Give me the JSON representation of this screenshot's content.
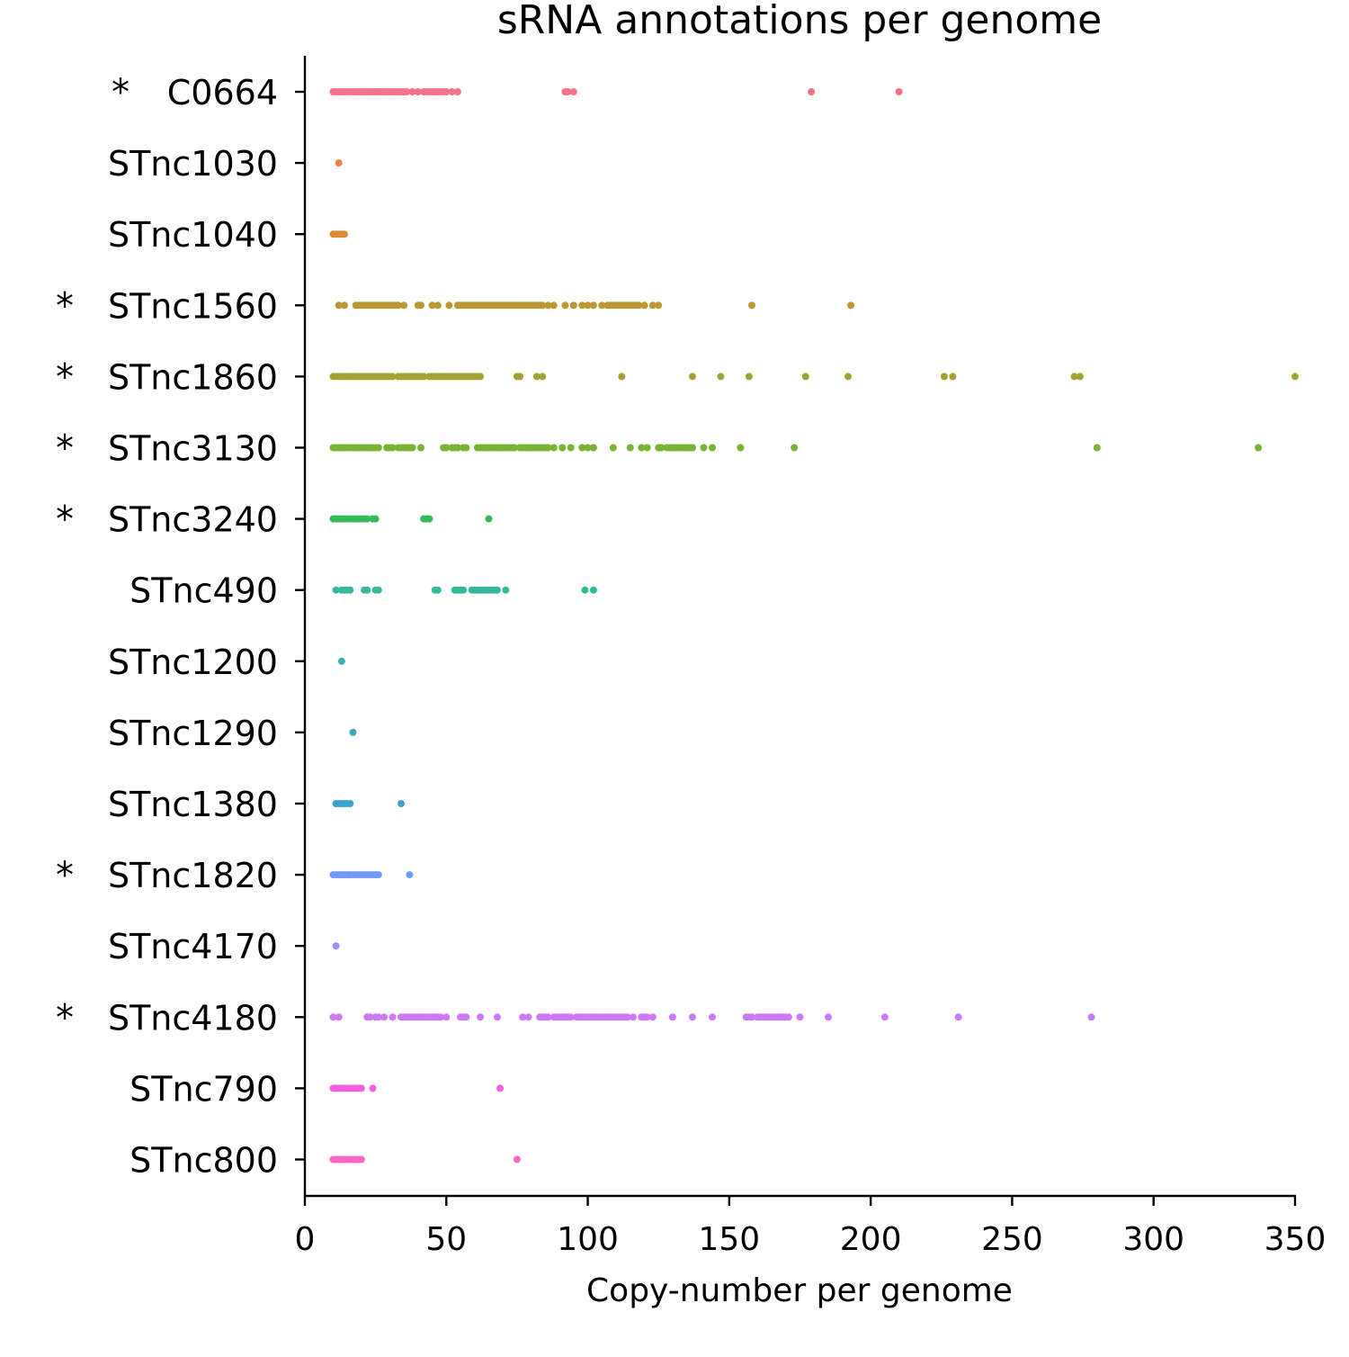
{
  "chart_data": {
    "type": "scatter",
    "title": "sRNA annotations per genome",
    "xlabel": "Copy-number per genome",
    "ylabel": "",
    "xlim": [
      0,
      350
    ],
    "xticks": [
      "0",
      "50",
      "100",
      "150",
      "200",
      "250",
      "300",
      "350"
    ],
    "grid": false,
    "legend": "none",
    "star_marker": "*",
    "categories": [
      {
        "label": "C0664",
        "starred": true,
        "color": "#f77189",
        "values": [
          10,
          11,
          12,
          13,
          14,
          15,
          16,
          17,
          18,
          19,
          20,
          21,
          22,
          23,
          24,
          25,
          26,
          27,
          28,
          29,
          30,
          31,
          32,
          33,
          34,
          35,
          36,
          38,
          40,
          42,
          43,
          44,
          45,
          46,
          47,
          48,
          49,
          50,
          52,
          54,
          92,
          93,
          95,
          179,
          210
        ]
      },
      {
        "label": "STnc1030",
        "starred": false,
        "color": "#f2814f",
        "values": [
          12
        ]
      },
      {
        "label": "STnc1040",
        "starred": false,
        "color": "#dc8932",
        "values": [
          10,
          11,
          12,
          13,
          14
        ]
      },
      {
        "label": "STnc1560",
        "starred": true,
        "color": "#bb9832",
        "values": [
          12,
          14,
          18,
          19,
          20,
          21,
          22,
          23,
          24,
          25,
          26,
          27,
          28,
          29,
          30,
          31,
          32,
          33,
          35,
          40,
          41,
          45,
          47,
          51,
          54,
          55,
          56,
          57,
          58,
          59,
          60,
          61,
          62,
          63,
          64,
          65,
          66,
          67,
          68,
          69,
          70,
          71,
          72,
          73,
          74,
          75,
          76,
          77,
          78,
          79,
          80,
          81,
          82,
          83,
          84,
          86,
          88,
          92,
          95,
          98,
          100,
          102,
          105,
          107,
          108,
          109,
          110,
          111,
          112,
          113,
          114,
          115,
          116,
          117,
          118,
          120,
          123,
          125,
          158,
          193
        ]
      },
      {
        "label": "STnc1860",
        "starred": true,
        "color": "#a2a233",
        "values": [
          10,
          11,
          12,
          13,
          14,
          15,
          16,
          17,
          18,
          19,
          20,
          21,
          22,
          23,
          24,
          25,
          26,
          27,
          28,
          29,
          30,
          31,
          33,
          34,
          35,
          36,
          37,
          38,
          39,
          40,
          41,
          42,
          44,
          45,
          46,
          47,
          48,
          49,
          50,
          51,
          52,
          53,
          54,
          55,
          56,
          57,
          58,
          59,
          60,
          61,
          62,
          75,
          76,
          82,
          84,
          112,
          137,
          147,
          157,
          177,
          192,
          226,
          229,
          272,
          274,
          350
        ]
      },
      {
        "label": "STnc3130",
        "starred": true,
        "color": "#78b432",
        "values": [
          10,
          11,
          12,
          13,
          14,
          15,
          16,
          17,
          18,
          19,
          20,
          21,
          22,
          23,
          24,
          25,
          26,
          29,
          30,
          31,
          33,
          34,
          35,
          36,
          37,
          38,
          41,
          49,
          50,
          52,
          53,
          54,
          56,
          57,
          61,
          62,
          63,
          64,
          65,
          66,
          67,
          68,
          69,
          70,
          71,
          72,
          73,
          74,
          76,
          77,
          78,
          79,
          80,
          81,
          82,
          83,
          84,
          85,
          86,
          88,
          91,
          94,
          98,
          100,
          102,
          109,
          115,
          119,
          121,
          125,
          126,
          128,
          129,
          130,
          131,
          132,
          133,
          134,
          135,
          136,
          137,
          141,
          144,
          154,
          173,
          280,
          337
        ]
      },
      {
        "label": "STnc3240",
        "starred": true,
        "color": "#34ba5a",
        "values": [
          10,
          11,
          12,
          13,
          14,
          15,
          16,
          17,
          18,
          19,
          20,
          21,
          22,
          24,
          25,
          42,
          43,
          44,
          65
        ]
      },
      {
        "label": "STnc490",
        "starred": false,
        "color": "#36b89b",
        "values": [
          11,
          13,
          14,
          15,
          16,
          21,
          22,
          25,
          26,
          46,
          47,
          53,
          54,
          55,
          56,
          59,
          60,
          61,
          62,
          63,
          64,
          65,
          66,
          67,
          68,
          71,
          99,
          102
        ]
      },
      {
        "label": "STnc1200",
        "starred": false,
        "color": "#38b1b0",
        "values": [
          13
        ]
      },
      {
        "label": "STnc1290",
        "starred": false,
        "color": "#3aaabb",
        "values": [
          17
        ]
      },
      {
        "label": "STnc1380",
        "starred": false,
        "color": "#3ba3cf",
        "values": [
          11,
          12,
          13,
          14,
          15,
          16,
          34
        ]
      },
      {
        "label": "STnc1820",
        "starred": true,
        "color": "#6e9bf4",
        "values": [
          10,
          11,
          12,
          13,
          14,
          15,
          16,
          17,
          18,
          19,
          20,
          21,
          22,
          23,
          24,
          25,
          26,
          37
        ]
      },
      {
        "label": "STnc4170",
        "starred": false,
        "color": "#a48cf4",
        "values": [
          11
        ]
      },
      {
        "label": "STnc4180",
        "starred": true,
        "color": "#cc7af4",
        "values": [
          10,
          12,
          22,
          23,
          25,
          26,
          28,
          31,
          34,
          35,
          36,
          37,
          38,
          39,
          40,
          41,
          42,
          43,
          44,
          45,
          46,
          47,
          48,
          50,
          55,
          56,
          57,
          62,
          68,
          77,
          79,
          83,
          84,
          85,
          86,
          88,
          89,
          90,
          91,
          92,
          93,
          94,
          96,
          97,
          98,
          99,
          100,
          101,
          102,
          103,
          104,
          105,
          106,
          107,
          108,
          109,
          110,
          111,
          112,
          113,
          114,
          116,
          119,
          120,
          121,
          123,
          130,
          137,
          144,
          156,
          157,
          158,
          160,
          161,
          162,
          163,
          164,
          165,
          166,
          167,
          168,
          169,
          170,
          171,
          175,
          185,
          205,
          231,
          278
        ]
      },
      {
        "label": "STnc790",
        "starred": false,
        "color": "#f45fe0",
        "values": [
          10,
          11,
          12,
          13,
          14,
          15,
          16,
          17,
          18,
          19,
          20,
          24,
          69
        ]
      },
      {
        "label": "STnc800",
        "starred": false,
        "color": "#f668c2",
        "values": [
          10,
          11,
          12,
          13,
          14,
          15,
          16,
          17,
          18,
          19,
          20,
          75
        ]
      }
    ]
  }
}
